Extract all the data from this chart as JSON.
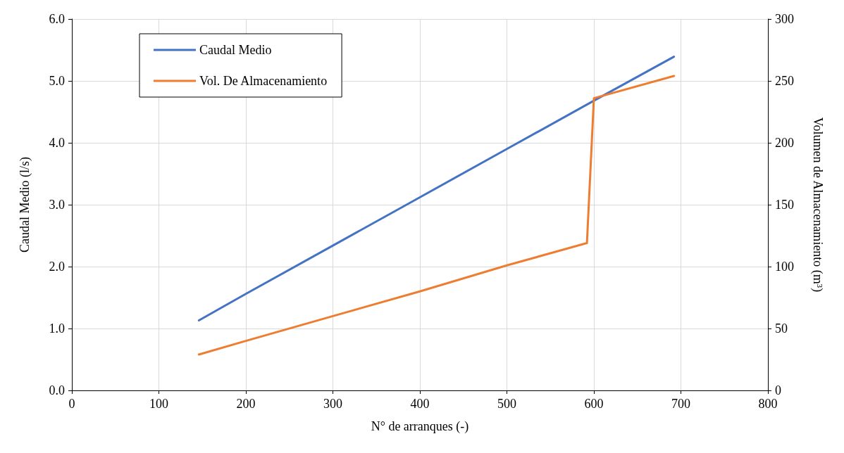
{
  "chart_data": {
    "type": "line",
    "xlabel": "N° de arranques (-)",
    "ylabel": "Caudal Medio (l/s)",
    "y2label": "Volumen de Almacenamiento (m³)",
    "xlim": [
      0,
      800
    ],
    "xticks": [
      0,
      100,
      200,
      300,
      400,
      500,
      600,
      700,
      800
    ],
    "ylim": [
      0,
      6
    ],
    "yticks": [
      {
        "value": 0,
        "label": "0.0"
      },
      {
        "value": 1,
        "label": "1.0"
      },
      {
        "value": 2,
        "label": "2.0"
      },
      {
        "value": 3,
        "label": "3.0"
      },
      {
        "value": 4,
        "label": "4.0"
      },
      {
        "value": 5,
        "label": "5.0"
      },
      {
        "value": 6,
        "label": "6.0"
      }
    ],
    "y2lim": [
      0,
      300
    ],
    "y2ticks": [
      0,
      50,
      100,
      150,
      200,
      250,
      300
    ],
    "grid": true,
    "legend": "top left",
    "marker": "none",
    "line_style": "solid",
    "series": [
      {
        "name": "Caudal Medio",
        "color": "#4472c4",
        "x": [
          146,
          200,
          300,
          400,
          500,
          600,
          692
        ],
        "values": [
          1.13,
          1.56,
          2.34,
          3.12,
          3.9,
          4.68,
          5.39
        ]
      },
      {
        "name": "Vol. De Almacenamiento",
        "color": "#ed7d31",
        "axis": "y2",
        "x": [
          146,
          200,
          300,
          400,
          500,
          592,
          600,
          692
        ],
        "values": [
          29,
          40,
          60,
          80,
          101,
          119,
          236,
          254
        ]
      }
    ]
  }
}
